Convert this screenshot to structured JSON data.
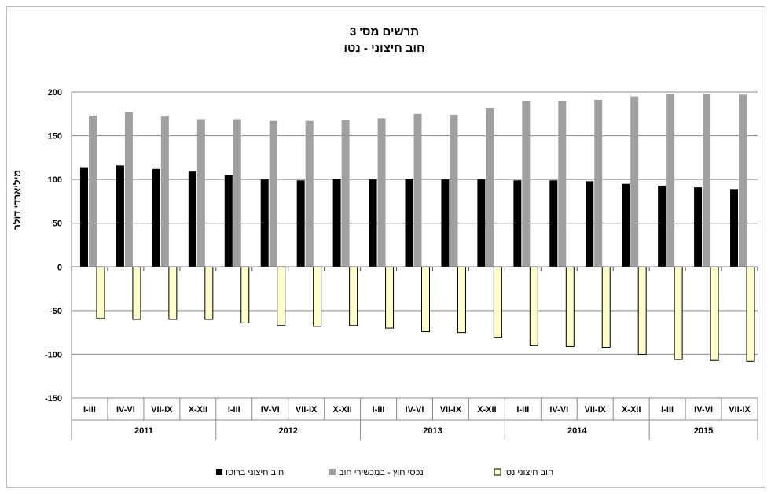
{
  "chart_data": {
    "type": "bar",
    "title": "תרשים מס' 3",
    "subtitle": "חוב חיצוני - נטו",
    "ylabel": "מיליארדי דולר",
    "xlabel": "",
    "ylim": [
      -150,
      200
    ],
    "yticks": [
      200,
      150,
      100,
      50,
      0,
      -50,
      -100,
      -150
    ],
    "grid": true,
    "legend_position": "bottom",
    "groups": [
      {
        "label": "2011",
        "quarters": [
          "I-III",
          "IV-VI",
          "VII-IX",
          "X-XII"
        ]
      },
      {
        "label": "2012",
        "quarters": [
          "I-III",
          "IV-VI",
          "VII-IX",
          "X-XII"
        ]
      },
      {
        "label": "2013",
        "quarters": [
          "I-III",
          "IV-VI",
          "VII-IX",
          "X-XII"
        ]
      },
      {
        "label": "2014",
        "quarters": [
          "I-III",
          "IV-VI",
          "VII-IX",
          "X-XII"
        ]
      },
      {
        "label": "2015",
        "quarters": [
          "I-III",
          "IV-VI",
          "VII-IX"
        ]
      }
    ],
    "series": [
      {
        "name": "חוב חיצוני ברוטו",
        "color": "#000000",
        "values": [
          114,
          116,
          112,
          109,
          105,
          100,
          99,
          101,
          100,
          101,
          100,
          100,
          99,
          99,
          98,
          95,
          93,
          91,
          89
        ]
      },
      {
        "name": "נכסי חוץ - במכשירי חוב",
        "color": "#a0a0a0",
        "values": [
          173,
          177,
          172,
          169,
          169,
          167,
          167,
          168,
          170,
          175,
          174,
          182,
          190,
          190,
          191,
          195,
          198,
          198,
          197
        ]
      },
      {
        "name": "חוב חיצוני נטו",
        "color": "#ffffcc",
        "values": [
          -59,
          -60,
          -60,
          -60,
          -64,
          -67,
          -68,
          -67,
          -70,
          -74,
          -75,
          -81,
          -90,
          -91,
          -92,
          -100,
          -106,
          -107,
          -108
        ]
      }
    ]
  }
}
